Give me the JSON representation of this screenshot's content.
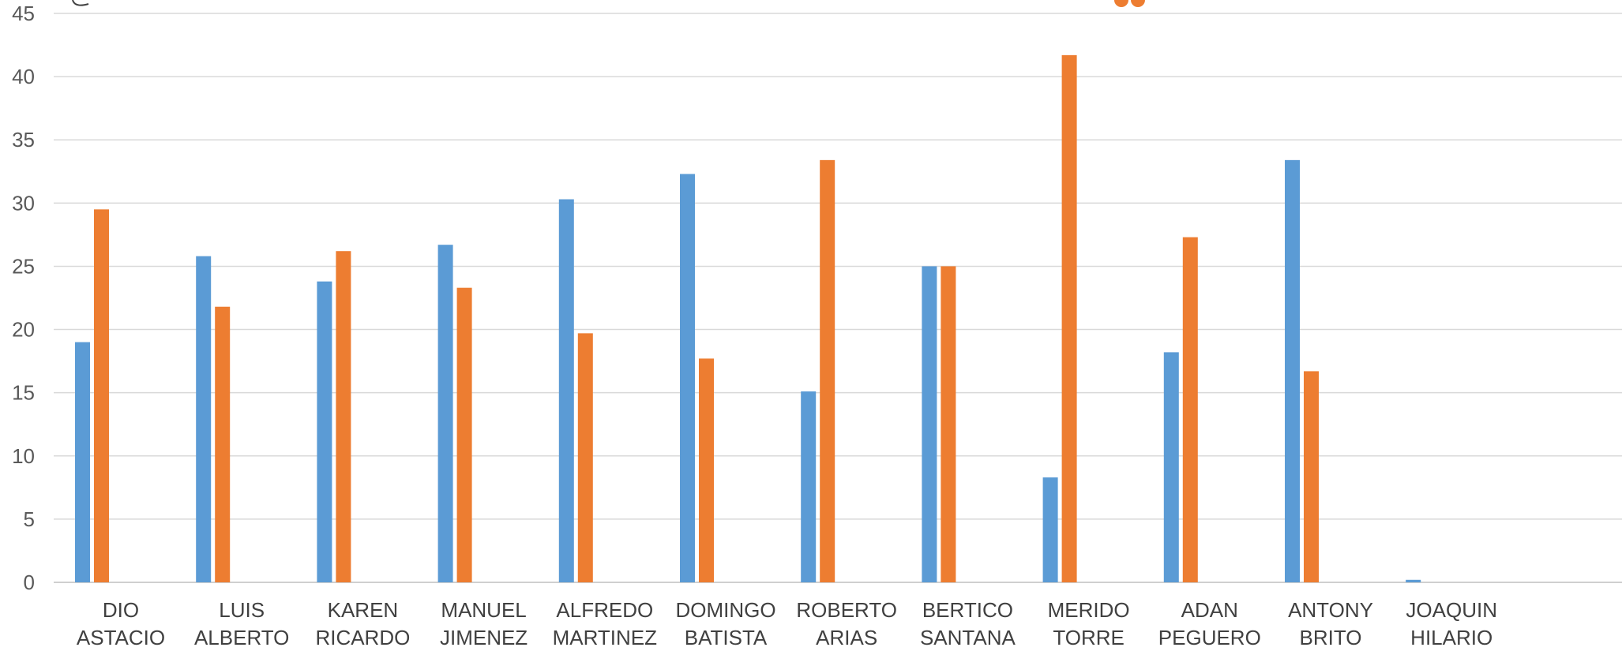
{
  "chart_data": {
    "type": "bar",
    "categories": [
      [
        "DIO",
        "ASTACIO"
      ],
      [
        "LUIS",
        "ALBERTO"
      ],
      [
        "KAREN",
        "RICARDO"
      ],
      [
        "MANUEL",
        "JIMENEZ"
      ],
      [
        "ALFREDO",
        "MARTINEZ"
      ],
      [
        "DOMINGO",
        "BATISTA"
      ],
      [
        "ROBERTO",
        "ARIAS"
      ],
      [
        "BERTICO",
        "SANTANA"
      ],
      [
        "MERIDO",
        "TORRE"
      ],
      [
        "ADAN",
        "PEGUERO"
      ],
      [
        "ANTONY",
        "BRITO"
      ],
      [
        "JOAQUIN",
        "HILARIO"
      ]
    ],
    "series": [
      {
        "color": "#5b9bd5",
        "values": [
          19,
          25.8,
          23.8,
          26.7,
          30.3,
          32.3,
          15.1,
          25,
          8.3,
          18.2,
          33.4,
          0.2
        ]
      },
      {
        "color": "#ed7d31",
        "values": [
          29.5,
          21.8,
          26.2,
          23.3,
          19.7,
          17.7,
          33.4,
          25,
          41.7,
          27.3,
          16.7,
          0
        ]
      }
    ],
    "ylim": [
      0,
      45
    ],
    "yticks": [
      0,
      5,
      10,
      15,
      20,
      25,
      30,
      35,
      40,
      45
    ],
    "grid": true,
    "gridColor": "#d9d9d9",
    "axisColor": "#bfbfbf"
  }
}
